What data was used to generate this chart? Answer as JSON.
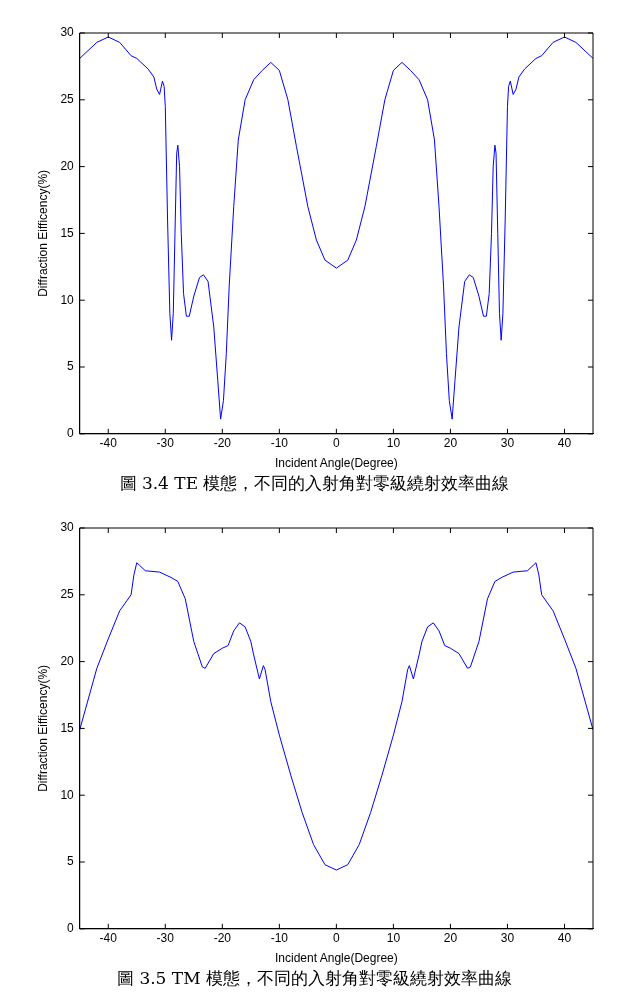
{
  "chart_data": [
    {
      "type": "line",
      "title": "圖 3.4 TE 模態，不同的入射角對零級繞射效率曲線",
      "xlabel": "Incident Angle(Degree)",
      "ylabel": "Diffraction Eifficency(%)",
      "xlim": [
        -45,
        45
      ],
      "xticks": [
        -40,
        -30,
        -20,
        -10,
        0,
        10,
        20,
        30,
        40
      ],
      "ylim": [
        0,
        30
      ],
      "yticks": [
        0,
        5,
        10,
        15,
        20,
        25,
        30
      ],
      "grid": false,
      "legend": false,
      "marker": "none",
      "line_style": "solid",
      "series": [
        {
          "color": "#0000ff",
          "x": [
            -45,
            -42,
            -40,
            -38,
            -36,
            -35,
            -33,
            -32,
            -31.5,
            -31,
            -30.5,
            -30.2,
            -30,
            -29.6,
            -29.2,
            -28.9,
            -28.6,
            -28.3,
            -28,
            -27.8,
            -27.5,
            -27.2,
            -26.8,
            -26.3,
            -25.8,
            -25,
            -24,
            -23.3,
            -22.5,
            -21.5,
            -20.8,
            -20.3,
            -19.8,
            -19.3,
            -18.8,
            -18,
            -17.2,
            -16,
            -14.5,
            -13,
            -11.5,
            -10,
            -8.5,
            -7,
            -5,
            -3.5,
            -2,
            0,
            2,
            3.5,
            5,
            7,
            8.5,
            10,
            11.5,
            13,
            14.5,
            16,
            17.2,
            18,
            18.8,
            19.3,
            19.8,
            20.3,
            20.8,
            21.5,
            22.5,
            23.3,
            24,
            25,
            25.8,
            26.3,
            26.8,
            27.2,
            27.5,
            27.8,
            28,
            28.3,
            28.6,
            28.9,
            29.2,
            29.6,
            30,
            30.2,
            30.5,
            31,
            31.5,
            32,
            33,
            35,
            36,
            38,
            40,
            42,
            45
          ],
          "values": [
            28.1,
            29.3,
            29.7,
            29.3,
            28.3,
            28.1,
            27.3,
            26.7,
            25.8,
            25.4,
            26.4,
            26.0,
            24.5,
            16,
            9,
            7.0,
            9,
            15,
            21.0,
            21.6,
            20,
            15,
            10.5,
            8.8,
            8.8,
            10.3,
            11.7,
            11.9,
            11.4,
            8.0,
            4.0,
            1.1,
            2.5,
            6,
            11,
            17,
            22,
            25,
            26.5,
            27.2,
            27.8,
            27.2,
            25.0,
            21.5,
            17,
            14.5,
            13,
            12.4,
            13,
            14.5,
            17,
            21.5,
            25.0,
            27.2,
            27.8,
            27.2,
            26.5,
            25,
            22,
            17,
            11,
            6,
            2.5,
            1.1,
            4.0,
            8.0,
            11.4,
            11.9,
            11.7,
            10.3,
            8.8,
            8.8,
            10.5,
            15,
            20,
            21.6,
            21.0,
            15,
            9,
            7.0,
            9,
            16,
            24.5,
            26.0,
            26.4,
            25.4,
            25.8,
            26.7,
            27.3,
            28.1,
            28.3,
            29.3,
            29.7,
            29.3,
            28.1
          ]
        }
      ]
    },
    {
      "type": "line",
      "title": "圖 3.5 TM 模態，不同的入射角對零級繞射效率曲線",
      "xlabel": "Incident Angle(Degree)",
      "ylabel": "Diffraction Eifficency(%)",
      "xlim": [
        -45,
        45
      ],
      "xticks": [
        -40,
        -30,
        -20,
        -10,
        0,
        10,
        20,
        30,
        40
      ],
      "ylim": [
        0,
        30
      ],
      "yticks": [
        0,
        5,
        10,
        15,
        20,
        25,
        30
      ],
      "grid": false,
      "legend": false,
      "marker": "none",
      "line_style": "solid",
      "series": [
        {
          "color": "#0000ff",
          "x": [
            -45,
            -42,
            -40,
            -38,
            -36,
            -35.5,
            -35,
            -34.5,
            -33.5,
            -31,
            -29,
            -27.8,
            -26.5,
            -25,
            -23.5,
            -23,
            -21.5,
            -20,
            -19,
            -18,
            -17,
            -16,
            -15,
            -14.5,
            -13.5,
            -12.8,
            -12.5,
            -11.5,
            -10,
            -8,
            -6,
            -4,
            -2,
            0,
            2,
            4,
            6,
            8,
            10,
            11.5,
            12.5,
            12.8,
            13.5,
            14.5,
            15,
            16,
            17,
            18,
            19,
            20,
            21.5,
            23,
            23.5,
            25,
            26.5,
            27.8,
            29,
            31,
            33.5,
            34.5,
            35,
            35.5,
            36,
            38,
            40,
            42,
            45
          ],
          "values": [
            14.9,
            19.5,
            21.7,
            23.8,
            25.0,
            26.5,
            27.4,
            27.2,
            26.8,
            26.7,
            26.3,
            26.0,
            24.7,
            21.5,
            19.6,
            19.5,
            20.6,
            21.0,
            21.2,
            22.3,
            22.9,
            22.6,
            21.5,
            20.5,
            18.7,
            19.7,
            19.4,
            17,
            14.5,
            11.5,
            8.7,
            6.3,
            4.8,
            4.4,
            4.8,
            6.3,
            8.7,
            11.5,
            14.5,
            17,
            19.4,
            19.7,
            18.7,
            20.5,
            21.5,
            22.6,
            22.9,
            22.3,
            21.2,
            21.0,
            20.6,
            19.5,
            19.6,
            21.5,
            24.7,
            26.0,
            26.3,
            26.7,
            26.8,
            27.2,
            27.4,
            26.5,
            25.0,
            23.8,
            21.7,
            19.5,
            14.9
          ]
        }
      ]
    }
  ]
}
